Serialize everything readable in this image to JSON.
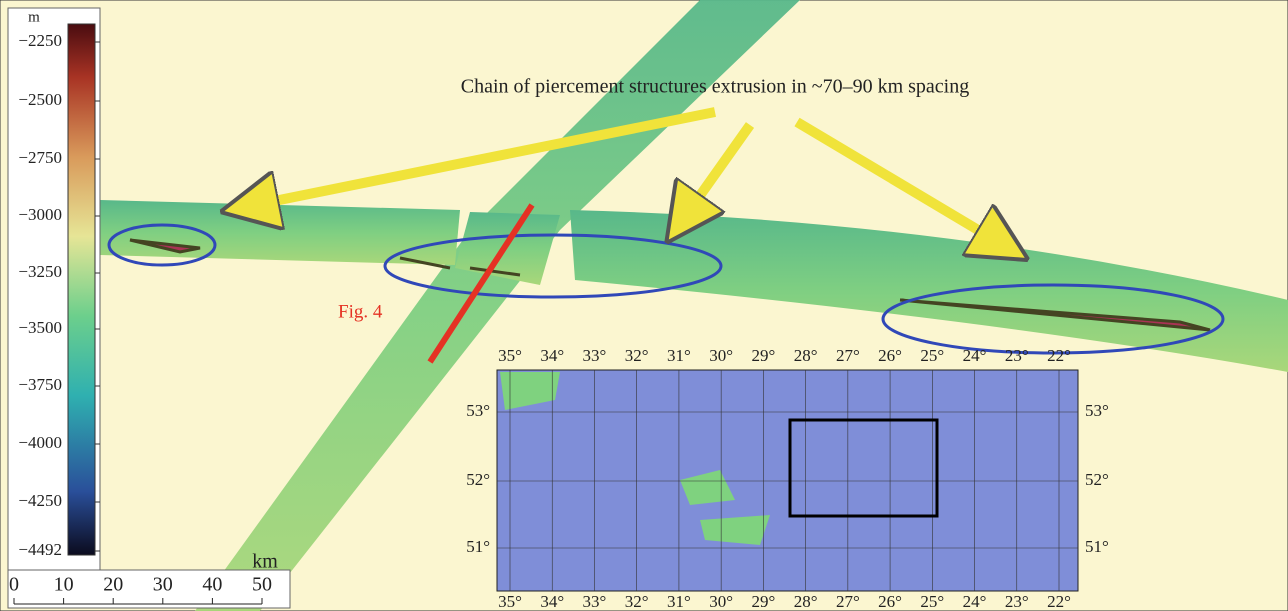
{
  "colorbar": {
    "unit": "m",
    "labels": [
      "−2250",
      "−2500",
      "−2750",
      "−3000",
      "−3250",
      "−3500",
      "−3750",
      "−4000",
      "−4250",
      "−4492"
    ]
  },
  "scale_bar": {
    "unit": "km",
    "labels": [
      "0",
      "10",
      "20",
      "30",
      "40",
      "50"
    ]
  },
  "annotation": "Chain of piercement structures extrusion in ~70–90 km spacing",
  "profile_label": "Fig. 4",
  "inset": {
    "longitudes": [
      "35°",
      "34°",
      "33°",
      "32°",
      "31°",
      "30°",
      "29°",
      "28°",
      "27°",
      "26°",
      "25°",
      "24°",
      "23°",
      "22°"
    ],
    "latitudes": [
      "53°",
      "52°",
      "51°"
    ]
  }
}
